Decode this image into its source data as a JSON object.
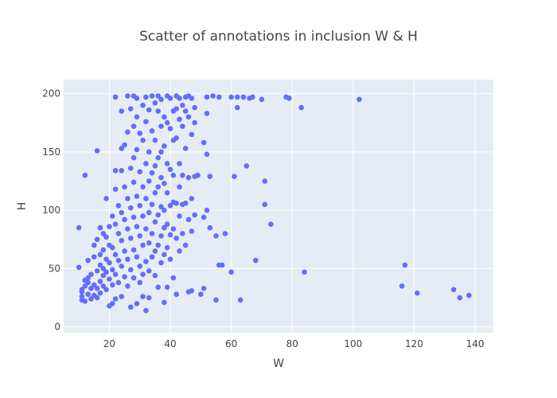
{
  "chart_data": {
    "type": "scatter",
    "title": "Scatter of annotations in inclusion W & H",
    "xlabel": "W",
    "ylabel": "H",
    "xlim": [
      5,
      146
    ],
    "ylim": [
      -5,
      212
    ],
    "xticks": [
      20,
      40,
      60,
      80,
      100,
      120,
      140
    ],
    "yticks": [
      0,
      50,
      100,
      150,
      200
    ],
    "grid": true,
    "legend": "none",
    "colors": {
      "background": "#e5ecf6",
      "grid": "#ffffff",
      "marker": "#636efa"
    },
    "series": [
      {
        "points": [
          [
            10,
            85
          ],
          [
            10,
            51
          ],
          [
            11,
            23
          ],
          [
            11,
            26
          ],
          [
            11,
            30
          ],
          [
            11,
            32
          ],
          [
            12,
            130
          ],
          [
            12,
            35
          ],
          [
            12,
            22
          ],
          [
            12,
            40
          ],
          [
            13,
            28
          ],
          [
            13,
            38
          ],
          [
            13,
            57
          ],
          [
            13,
            42
          ],
          [
            14,
            24
          ],
          [
            14,
            33
          ],
          [
            14,
            45
          ],
          [
            15,
            60
          ],
          [
            15,
            70
          ],
          [
            15,
            36
          ],
          [
            15,
            27
          ],
          [
            16,
            151
          ],
          [
            16,
            75
          ],
          [
            16,
            48
          ],
          [
            16,
            33
          ],
          [
            16,
            25
          ],
          [
            17,
            85
          ],
          [
            17,
            62
          ],
          [
            17,
            53
          ],
          [
            17,
            39
          ],
          [
            17,
            29
          ],
          [
            18,
            80
          ],
          [
            18,
            66
          ],
          [
            18,
            50
          ],
          [
            18,
            44
          ],
          [
            18,
            35
          ],
          [
            19,
            110
          ],
          [
            19,
            77
          ],
          [
            19,
            58
          ],
          [
            19,
            47
          ],
          [
            19,
            32
          ],
          [
            20,
            86
          ],
          [
            20,
            70
          ],
          [
            20,
            55
          ],
          [
            20,
            41
          ],
          [
            20,
            18
          ],
          [
            21,
            95
          ],
          [
            21,
            68
          ],
          [
            21,
            49
          ],
          [
            21,
            36
          ],
          [
            21,
            20
          ],
          [
            22,
            197
          ],
          [
            22,
            134
          ],
          [
            22,
            118
          ],
          [
            22,
            88
          ],
          [
            22,
            62
          ],
          [
            22,
            45
          ],
          [
            22,
            24
          ],
          [
            23,
            104
          ],
          [
            23,
            80
          ],
          [
            23,
            57
          ],
          [
            23,
            38
          ],
          [
            24,
            185
          ],
          [
            24,
            153
          ],
          [
            24,
            134
          ],
          [
            24,
            98
          ],
          [
            24,
            74
          ],
          [
            24,
            52
          ],
          [
            24,
            26
          ],
          [
            25,
            156
          ],
          [
            25,
            120
          ],
          [
            25,
            92
          ],
          [
            25,
            65
          ],
          [
            25,
            43
          ],
          [
            26,
            198
          ],
          [
            26,
            167
          ],
          [
            26,
            110
          ],
          [
            26,
            84
          ],
          [
            26,
            58
          ],
          [
            26,
            35
          ],
          [
            27,
            187
          ],
          [
            27,
            136
          ],
          [
            27,
            102
          ],
          [
            27,
            76
          ],
          [
            27,
            49
          ],
          [
            27,
            17
          ],
          [
            28,
            198
          ],
          [
            28,
            172
          ],
          [
            28,
            145
          ],
          [
            28,
            124
          ],
          [
            28,
            94
          ],
          [
            28,
            66
          ],
          [
            28,
            42
          ],
          [
            29,
            196
          ],
          [
            29,
            180
          ],
          [
            29,
            152
          ],
          [
            29,
            112
          ],
          [
            29,
            86
          ],
          [
            29,
            60
          ],
          [
            29,
            20
          ],
          [
            30,
            166
          ],
          [
            30,
            133
          ],
          [
            30,
            104
          ],
          [
            30,
            78
          ],
          [
            30,
            52
          ],
          [
            30,
            38
          ],
          [
            31,
            190
          ],
          [
            31,
            160
          ],
          [
            31,
            120
          ],
          [
            31,
            95
          ],
          [
            31,
            70
          ],
          [
            31,
            45
          ],
          [
            31,
            26
          ],
          [
            32,
            197
          ],
          [
            32,
            176
          ],
          [
            32,
            140
          ],
          [
            32,
            110
          ],
          [
            32,
            84
          ],
          [
            32,
            56
          ],
          [
            32,
            14
          ],
          [
            33,
            186
          ],
          [
            33,
            150
          ],
          [
            33,
            125
          ],
          [
            33,
            98
          ],
          [
            33,
            72
          ],
          [
            33,
            48
          ],
          [
            33,
            25
          ],
          [
            34,
            198
          ],
          [
            34,
            168
          ],
          [
            34,
            132
          ],
          [
            34,
            105
          ],
          [
            34,
            80
          ],
          [
            34,
            60
          ],
          [
            35,
            192
          ],
          [
            35,
            160
          ],
          [
            35,
            138
          ],
          [
            35,
            115
          ],
          [
            35,
            90
          ],
          [
            35,
            65
          ],
          [
            35,
            44
          ],
          [
            36,
            198
          ],
          [
            36,
            185
          ],
          [
            36,
            145
          ],
          [
            36,
            120
          ],
          [
            36,
            96
          ],
          [
            36,
            70
          ],
          [
            36,
            34
          ],
          [
            37,
            195
          ],
          [
            37,
            172
          ],
          [
            37,
            150
          ],
          [
            37,
            128
          ],
          [
            37,
            103
          ],
          [
            37,
            78
          ],
          [
            37,
            55
          ],
          [
            38,
            180
          ],
          [
            38,
            155
          ],
          [
            38,
            123
          ],
          [
            38,
            100
          ],
          [
            38,
            85
          ],
          [
            38,
            62
          ],
          [
            38,
            21
          ],
          [
            39,
            198
          ],
          [
            39,
            175
          ],
          [
            39,
            140
          ],
          [
            39,
            115
          ],
          [
            39,
            88
          ],
          [
            39,
            68
          ],
          [
            39,
            34
          ],
          [
            40,
            196
          ],
          [
            40,
            170
          ],
          [
            40,
            135
          ],
          [
            40,
            104
          ],
          [
            40,
            79
          ],
          [
            40,
            58
          ],
          [
            41,
            185
          ],
          [
            41,
            160
          ],
          [
            41,
            130
          ],
          [
            41,
            107
          ],
          [
            41,
            84
          ],
          [
            41,
            42
          ],
          [
            42,
            198
          ],
          [
            42,
            187
          ],
          [
            42,
            162
          ],
          [
            42,
            106
          ],
          [
            42,
            76
          ],
          [
            42,
            28
          ],
          [
            43,
            196
          ],
          [
            43,
            178
          ],
          [
            43,
            140
          ],
          [
            43,
            120
          ],
          [
            43,
            95
          ],
          [
            43,
            65
          ],
          [
            44,
            190
          ],
          [
            44,
            172
          ],
          [
            44,
            130
          ],
          [
            44,
            105
          ],
          [
            44,
            80
          ],
          [
            45,
            197
          ],
          [
            45,
            185
          ],
          [
            45,
            153
          ],
          [
            45,
            106
          ],
          [
            45,
            70
          ],
          [
            46,
            198
          ],
          [
            46,
            180
          ],
          [
            46,
            128
          ],
          [
            46,
            92
          ],
          [
            46,
            30
          ],
          [
            47,
            196
          ],
          [
            47,
            165
          ],
          [
            47,
            110
          ],
          [
            47,
            82
          ],
          [
            47,
            31
          ],
          [
            48,
            188
          ],
          [
            48,
            175
          ],
          [
            48,
            129
          ],
          [
            48,
            96
          ],
          [
            49,
            130
          ],
          [
            50,
            28
          ],
          [
            51,
            158
          ],
          [
            51,
            94
          ],
          [
            51,
            33
          ],
          [
            52,
            197
          ],
          [
            52,
            148
          ],
          [
            52,
            100
          ],
          [
            52,
            183
          ],
          [
            53,
            129
          ],
          [
            53,
            85
          ],
          [
            54,
            198
          ],
          [
            55,
            23
          ],
          [
            55,
            78
          ],
          [
            56,
            53
          ],
          [
            56,
            197
          ],
          [
            57,
            53
          ],
          [
            58,
            80
          ],
          [
            60,
            197
          ],
          [
            60,
            47
          ],
          [
            61,
            129
          ],
          [
            62,
            188
          ],
          [
            62,
            197
          ],
          [
            63,
            23
          ],
          [
            64,
            197
          ],
          [
            65,
            138
          ],
          [
            66,
            196
          ],
          [
            67,
            197
          ],
          [
            68,
            57
          ],
          [
            70,
            195
          ],
          [
            71,
            125
          ],
          [
            71,
            105
          ],
          [
            73,
            88
          ],
          [
            78,
            197
          ],
          [
            79,
            196
          ],
          [
            83,
            188
          ],
          [
            84,
            47
          ],
          [
            102,
            195
          ],
          [
            116,
            35
          ],
          [
            117,
            53
          ],
          [
            121,
            29
          ],
          [
            133,
            32
          ],
          [
            135,
            25
          ],
          [
            138,
            27
          ]
        ]
      }
    ]
  }
}
